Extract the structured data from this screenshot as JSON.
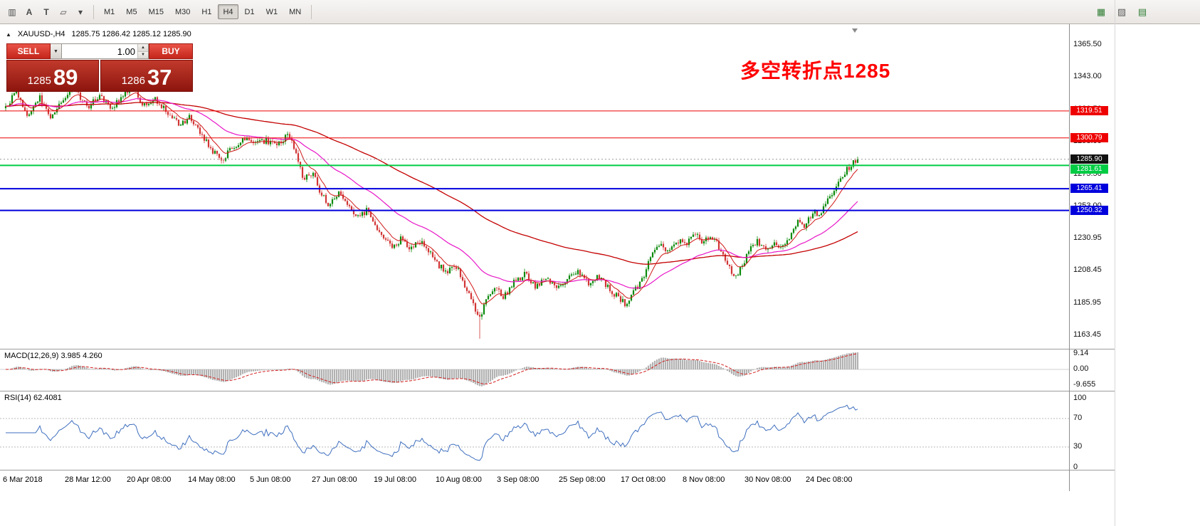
{
  "toolbar": {
    "left_icons": [
      {
        "name": "chart-mode-icon",
        "glyph": "▥"
      },
      {
        "name": "cursor-tool-icon",
        "glyph": "A"
      },
      {
        "name": "text-tool-icon",
        "glyph": "T"
      },
      {
        "name": "draw-tool-icon",
        "glyph": "▱"
      },
      {
        "name": "draw-dropdown-icon",
        "glyph": "▾"
      }
    ],
    "timeframes": [
      {
        "label": "M1",
        "selected": false
      },
      {
        "label": "M5",
        "selected": false
      },
      {
        "label": "M15",
        "selected": false
      },
      {
        "label": "M30",
        "selected": false
      },
      {
        "label": "H1",
        "selected": false
      },
      {
        "label": "H4",
        "selected": true
      },
      {
        "label": "D1",
        "selected": false
      },
      {
        "label": "W1",
        "selected": false
      },
      {
        "label": "MN",
        "selected": false
      }
    ],
    "right_icons": [
      {
        "name": "grid-icon",
        "glyph": "▦",
        "color": "#2e7d32"
      },
      {
        "name": "tile-windows-icon",
        "glyph": "▨",
        "color": "#5a5a5a"
      },
      {
        "name": "chart-window-icon",
        "glyph": "▤",
        "color": "#2e7d32"
      }
    ]
  },
  "chart": {
    "marker_glyph": "▲",
    "symbol": "XAUUSD-,H4",
    "ohlc": "1285.75 1286.42 1285.12 1285.90",
    "annotation": {
      "text": "多空转折点1285",
      "color": "#ff0000"
    },
    "price_axis": [
      "1365.50",
      "1343.00",
      "1320.50",
      "1298.00",
      "1275.50",
      "1253.00",
      "1230.95",
      "1208.45",
      "1185.95",
      "1163.45"
    ],
    "date_axis": [
      "6 Mar 2018",
      "28 Mar 12:00",
      "20 Apr 08:00",
      "14 May 08:00",
      "5 Jun 08:00",
      "27 Jun 08:00",
      "19 Jul 08:00",
      "10 Aug 08:00",
      "3 Sep 08:00",
      "25 Sep 08:00",
      "17 Oct 08:00",
      "8 Nov 08:00",
      "30 Nov 08:00",
      "24 Dec 08:00"
    ],
    "current_price": {
      "label": "1285.90",
      "badge_color": "#111111"
    }
  },
  "trade_panel": {
    "sell_label": "SELL",
    "buy_label": "BUY",
    "volume": "1.00",
    "combo_glyph": "▼",
    "spin_up_glyph": "▲",
    "spin_down_glyph": "▼",
    "sell_price_small": "1285",
    "sell_price_big": "89",
    "buy_price_small": "1286",
    "buy_price_big": "37"
  },
  "macd_panel": {
    "title": "MACD(12,26,9)",
    "value_main": "3.985",
    "value_signal": "4.260",
    "axis": [
      "9.14",
      "0.00",
      "-9.655"
    ]
  },
  "rsi_panel": {
    "title": "RSI(14)",
    "value": "62.4081",
    "axis": [
      "100",
      "70",
      "30",
      "0"
    ]
  },
  "chart_data": {
    "type": "candlestick",
    "symbol": "XAUUSD",
    "timeframe": "H4",
    "last_price": 1285.9,
    "price_range_visible": [
      1163.45,
      1365.5
    ],
    "levels": [
      {
        "price": 1319.51,
        "label": "1319.51",
        "color": "#ee0000",
        "line_width": 1
      },
      {
        "price": 1300.79,
        "label": "1300.79",
        "color": "#ee0000",
        "line_width": 1
      },
      {
        "price": 1281.61,
        "label": "1281.61",
        "color": "#00cc44",
        "line_width": 2
      },
      {
        "price": 1265.41,
        "label": "1265.41",
        "color": "#0000dd",
        "line_width": 2
      },
      {
        "price": 1250.32,
        "label": "1250.32",
        "color": "#0000dd",
        "line_width": 2
      }
    ],
    "price_waypoints": [
      [
        0,
        1322
      ],
      [
        0.012,
        1333
      ],
      [
        0.025,
        1316
      ],
      [
        0.04,
        1329
      ],
      [
        0.052,
        1314
      ],
      [
        0.065,
        1326
      ],
      [
        0.08,
        1336
      ],
      [
        0.095,
        1322
      ],
      [
        0.11,
        1330
      ],
      [
        0.125,
        1322
      ],
      [
        0.14,
        1332
      ],
      [
        0.15,
        1336
      ],
      [
        0.16,
        1322
      ],
      [
        0.175,
        1328
      ],
      [
        0.19,
        1318
      ],
      [
        0.205,
        1310
      ],
      [
        0.216,
        1315
      ],
      [
        0.23,
        1303
      ],
      [
        0.243,
        1291
      ],
      [
        0.255,
        1286
      ],
      [
        0.268,
        1295
      ],
      [
        0.28,
        1300
      ],
      [
        0.292,
        1296
      ],
      [
        0.305,
        1299
      ],
      [
        0.32,
        1296
      ],
      [
        0.332,
        1303
      ],
      [
        0.34,
        1290
      ],
      [
        0.35,
        1272
      ],
      [
        0.36,
        1277
      ],
      [
        0.37,
        1262
      ],
      [
        0.38,
        1253
      ],
      [
        0.39,
        1263
      ],
      [
        0.4,
        1255
      ],
      [
        0.412,
        1245
      ],
      [
        0.424,
        1250
      ],
      [
        0.434,
        1240
      ],
      [
        0.445,
        1230
      ],
      [
        0.455,
        1224
      ],
      [
        0.465,
        1231
      ],
      [
        0.475,
        1224
      ],
      [
        0.485,
        1230
      ],
      [
        0.495,
        1222
      ],
      [
        0.507,
        1213
      ],
      [
        0.518,
        1207
      ],
      [
        0.528,
        1212
      ],
      [
        0.538,
        1200
      ],
      [
        0.548,
        1186
      ],
      [
        0.556,
        1176
      ],
      [
        0.565,
        1188
      ],
      [
        0.575,
        1195
      ],
      [
        0.585,
        1190
      ],
      [
        0.597,
        1201
      ],
      [
        0.61,
        1206
      ],
      [
        0.622,
        1197
      ],
      [
        0.635,
        1204
      ],
      [
        0.648,
        1196
      ],
      [
        0.66,
        1203
      ],
      [
        0.672,
        1208
      ],
      [
        0.684,
        1199
      ],
      [
        0.695,
        1204
      ],
      [
        0.707,
        1197
      ],
      [
        0.718,
        1190
      ],
      [
        0.728,
        1185
      ],
      [
        0.738,
        1194
      ],
      [
        0.748,
        1203
      ],
      [
        0.758,
        1222
      ],
      [
        0.768,
        1227
      ],
      [
        0.778,
        1222
      ],
      [
        0.788,
        1230
      ],
      [
        0.798,
        1225
      ],
      [
        0.808,
        1236
      ],
      [
        0.818,
        1228
      ],
      [
        0.828,
        1233
      ],
      [
        0.838,
        1224
      ],
      [
        0.848,
        1212
      ],
      [
        0.856,
        1202
      ],
      [
        0.865,
        1213
      ],
      [
        0.874,
        1224
      ],
      [
        0.883,
        1229
      ],
      [
        0.892,
        1222
      ],
      [
        0.901,
        1228
      ],
      [
        0.91,
        1223
      ],
      [
        0.92,
        1232
      ],
      [
        0.93,
        1242
      ],
      [
        0.938,
        1237
      ],
      [
        0.947,
        1250
      ],
      [
        0.956,
        1247
      ],
      [
        0.965,
        1258
      ],
      [
        0.974,
        1266
      ],
      [
        0.983,
        1275
      ],
      [
        0.992,
        1282
      ],
      [
        1,
        1286
      ]
    ],
    "spikes": [
      {
        "t": 0.556,
        "low": 1161
      }
    ],
    "up_color": "#0b8a0b",
    "down_color": "#d23535",
    "moving_averages": [
      {
        "period": 9,
        "color": "#d01818",
        "width": 1
      },
      {
        "period": 40,
        "color": "#e818c8",
        "width": 1.2
      },
      {
        "period": 130,
        "color": "#c40000",
        "width": 1.3
      }
    ],
    "macd": {
      "fast": 12,
      "slow": 26,
      "signal": 9,
      "histogram_color": "#b2b2b2",
      "signal_color": "#d22020"
    },
    "rsi": {
      "period": 14,
      "color": "#3f6fbf",
      "level_values": [
        70,
        30
      ]
    }
  }
}
